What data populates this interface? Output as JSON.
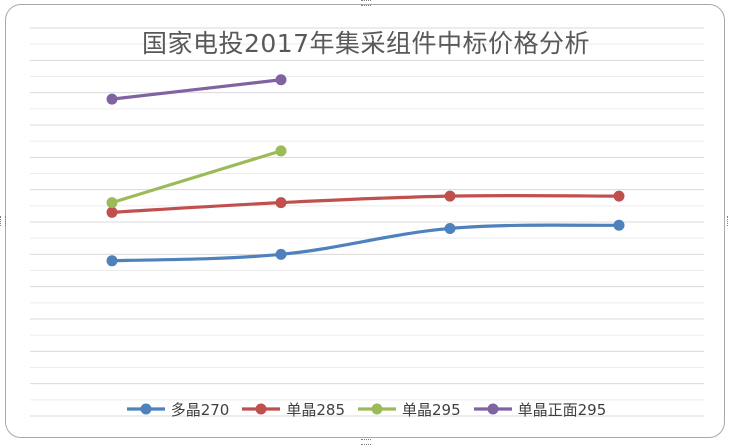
{
  "chart_data": {
    "type": "line",
    "title": "国家电投2017年集采组件中标价格分析",
    "xlabel": "",
    "ylabel": "",
    "categories": [
      "",
      "",
      "",
      ""
    ],
    "ylim": [
      0,
      12
    ],
    "grid": true,
    "legend_position": "bottom",
    "series": [
      {
        "name": "多晶270",
        "color": "#4f81bd",
        "values": [
          4.8,
          5.0,
          5.8,
          5.9
        ]
      },
      {
        "name": "单晶285",
        "color": "#c0504d",
        "values": [
          6.3,
          6.6,
          6.8,
          6.8
        ]
      },
      {
        "name": "单晶295",
        "color": "#9bbb59",
        "values": [
          6.6,
          8.2,
          null,
          null
        ]
      },
      {
        "name": "单晶正面295",
        "color": "#8064a2",
        "values": [
          9.8,
          10.4,
          null,
          null
        ]
      }
    ]
  }
}
